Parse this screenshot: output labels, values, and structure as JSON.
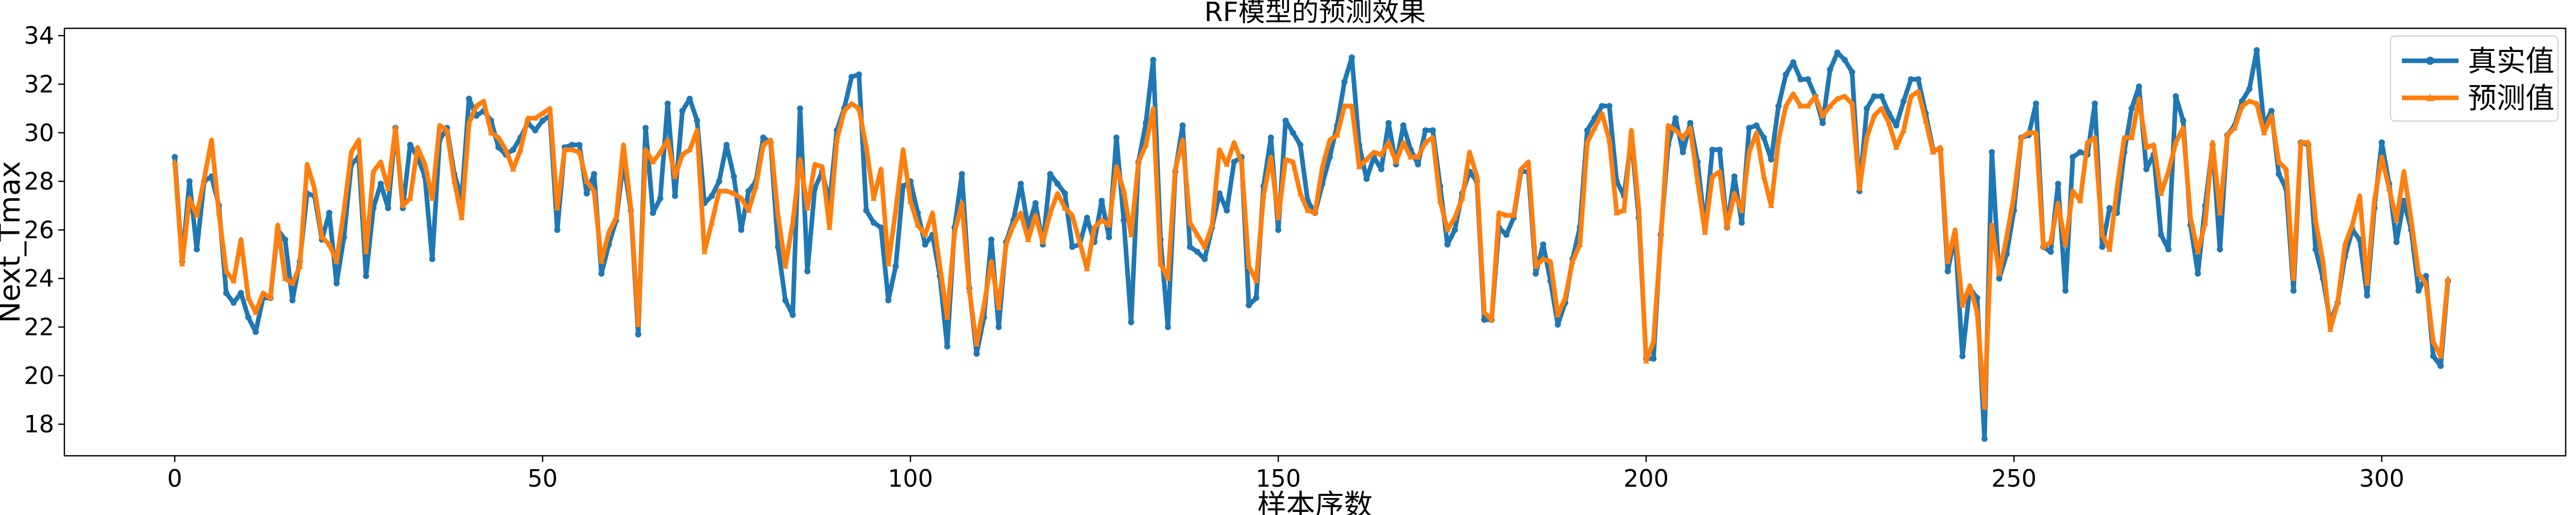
{
  "chart_data": {
    "type": "line",
    "title": "RF模型的预测效果",
    "xlabel": "样本序数",
    "ylabel": "Next_Tmax",
    "xlim": [
      -15,
      325
    ],
    "ylim": [
      16.7,
      34.3
    ],
    "xticks": [
      0,
      50,
      100,
      150,
      200,
      250,
      300
    ],
    "yticks": [
      18,
      20,
      22,
      24,
      26,
      28,
      30,
      32,
      34
    ],
    "grid": false,
    "legend": "top-right",
    "series": [
      {
        "name": "真实值",
        "color": "#1f77b4",
        "marker": "circle",
        "values": [
          29.0,
          24.7,
          28.0,
          25.2,
          28.0,
          28.2,
          27.0,
          23.4,
          23.0,
          23.4,
          22.4,
          21.8,
          23.2,
          23.2,
          26.0,
          25.6,
          23.1,
          24.7,
          27.5,
          27.4,
          25.6,
          26.7,
          23.8,
          25.7,
          28.7,
          29.0,
          24.1,
          26.9,
          27.9,
          26.9,
          30.2,
          26.9,
          29.5,
          29.0,
          28.2,
          24.8,
          29.7,
          30.2,
          28.3,
          27.3,
          31.4,
          30.7,
          30.9,
          30.5,
          29.4,
          29.1,
          29.3,
          29.8,
          30.4,
          30.1,
          30.5,
          30.7,
          26.0,
          29.4,
          29.5,
          29.5,
          27.5,
          28.3,
          24.2,
          25.4,
          26.4,
          28.8,
          26.8,
          21.7,
          30.2,
          26.7,
          27.3,
          31.2,
          27.4,
          30.9,
          31.4,
          30.5,
          27.1,
          27.4,
          28.0,
          29.5,
          28.2,
          26.0,
          27.6,
          28.0,
          29.8,
          29.6,
          25.3,
          23.1,
          22.5,
          31.0,
          24.3,
          27.7,
          28.4,
          27.1,
          30.1,
          31.0,
          32.3,
          32.4,
          26.8,
          26.3,
          26.1,
          23.1,
          24.5,
          27.8,
          28.0,
          26.7,
          25.4,
          25.8,
          24.1,
          21.2,
          26.1,
          28.3,
          23.6,
          20.9,
          22.4,
          25.6,
          22.0,
          25.5,
          26.4,
          27.9,
          26.1,
          27.1,
          25.4,
          28.3,
          27.9,
          27.5,
          25.3,
          25.4,
          26.5,
          25.5,
          27.2,
          25.7,
          29.8,
          26.4,
          22.2,
          28.8,
          30.4,
          33.0,
          25.6,
          22.0,
          28.4,
          30.3,
          25.3,
          25.1,
          24.8,
          26.1,
          27.5,
          26.8,
          28.8,
          29.0,
          22.9,
          23.2,
          27.8,
          29.8,
          26.0,
          30.5,
          30.0,
          29.5,
          27.2,
          26.7,
          27.9,
          29.0,
          30.3,
          32.1,
          33.1,
          29.5,
          28.1,
          29.0,
          28.5,
          30.4,
          28.7,
          30.3,
          29.3,
          28.7,
          30.1,
          30.1,
          27.8,
          25.4,
          26.0,
          27.5,
          28.4,
          28.0,
          22.3,
          22.3,
          26.1,
          25.8,
          26.5,
          28.4,
          28.4,
          24.2,
          25.4,
          23.9,
          22.1,
          23.0,
          24.8,
          26.1,
          30.1,
          30.6,
          31.1,
          31.1,
          28.0,
          27.4,
          29.8,
          26.5,
          20.7,
          20.7,
          25.8,
          29.5,
          30.6,
          29.2,
          30.4,
          28.8,
          26.1,
          29.3,
          29.3,
          26.1,
          28.2,
          26.3,
          30.2,
          30.3,
          29.8,
          28.9,
          31.1,
          32.4,
          32.9,
          32.2,
          32.2,
          31.5,
          30.4,
          32.6,
          33.3,
          33.0,
          32.5,
          27.6,
          31.0,
          31.5,
          31.5,
          30.8,
          30.3,
          31.3,
          32.2,
          32.2,
          30.8,
          29.3,
          29.3,
          24.3,
          25.8,
          20.8,
          23.6,
          23.2,
          17.4,
          29.2,
          24.0,
          25.0,
          26.8,
          29.8,
          29.9,
          31.2,
          25.3,
          25.1,
          27.9,
          23.5,
          29.0,
          29.2,
          29.1,
          31.2,
          25.3,
          26.9,
          26.7,
          29.2,
          31.0,
          31.9,
          28.5,
          29.1,
          25.8,
          25.2,
          31.5,
          30.5,
          26.2,
          24.2,
          27.0,
          29.5,
          25.2,
          29.9,
          30.3,
          31.3,
          31.8,
          33.4,
          30.3,
          30.9,
          28.3,
          27.7,
          23.5,
          29.6,
          29.5,
          25.2,
          24.0,
          22.2,
          23.0,
          24.9,
          26.0,
          25.6,
          23.3,
          26.9,
          29.6,
          27.9,
          25.5,
          27.2,
          26.0,
          23.5,
          24.1,
          20.8,
          20.4,
          23.9
        ]
      },
      {
        "name": "预测值",
        "color": "#ff7f0e",
        "marker": "triangle",
        "values": [
          28.8,
          24.6,
          27.3,
          26.6,
          28.1,
          29.7,
          26.7,
          24.3,
          23.9,
          25.6,
          23.2,
          22.6,
          23.4,
          23.2,
          26.2,
          24.0,
          23.8,
          24.5,
          28.7,
          27.7,
          25.7,
          25.4,
          24.7,
          26.8,
          29.2,
          29.7,
          25.1,
          28.4,
          28.8,
          27.7,
          30.2,
          27.0,
          27.3,
          29.4,
          28.7,
          27.3,
          30.3,
          30.1,
          28.0,
          26.5,
          30.4,
          31.1,
          31.3,
          30.0,
          29.8,
          29.3,
          28.5,
          29.3,
          30.6,
          30.6,
          30.8,
          31.0,
          26.9,
          29.3,
          29.3,
          29.2,
          28.0,
          27.6,
          24.7,
          25.9,
          26.5,
          29.5,
          26.9,
          22.1,
          29.3,
          28.8,
          29.2,
          29.7,
          28.2,
          29.1,
          29.3,
          30.1,
          25.1,
          26.3,
          27.6,
          27.6,
          27.5,
          27.3,
          26.8,
          27.8,
          29.5,
          29.7,
          26.6,
          24.5,
          26.3,
          28.9,
          26.9,
          28.7,
          28.6,
          26.1,
          29.7,
          30.9,
          31.2,
          31.0,
          29.4,
          27.3,
          28.5,
          24.6,
          26.8,
          29.3,
          27.2,
          26.2,
          25.8,
          26.7,
          24.5,
          22.4,
          25.9,
          27.1,
          23.5,
          21.3,
          22.9,
          24.7,
          22.8,
          25.4,
          26.2,
          26.7,
          25.6,
          26.6,
          25.5,
          26.7,
          27.5,
          26.9,
          26.6,
          25.5,
          24.4,
          26.1,
          26.4,
          26.2,
          28.6,
          27.6,
          25.8,
          28.8,
          29.5,
          31.0,
          24.6,
          24.0,
          28.5,
          29.7,
          26.3,
          25.8,
          25.3,
          26.2,
          29.3,
          28.7,
          29.6,
          28.8,
          24.5,
          23.9,
          27.4,
          29.0,
          26.5,
          28.9,
          28.8,
          27.5,
          26.8,
          26.7,
          28.6,
          29.7,
          29.9,
          31.1,
          31.1,
          28.6,
          28.9,
          29.2,
          29.1,
          29.6,
          28.8,
          29.6,
          29.0,
          29.0,
          29.6,
          29.8,
          27.2,
          26.0,
          26.5,
          27.3,
          29.2,
          28.2,
          22.6,
          22.3,
          26.7,
          26.6,
          26.6,
          28.5,
          28.8,
          24.5,
          24.8,
          24.7,
          22.5,
          23.2,
          24.7,
          25.4,
          29.6,
          30.2,
          30.8,
          29.7,
          26.7,
          26.8,
          30.1,
          26.9,
          20.6,
          21.4,
          25.6,
          30.3,
          30.1,
          29.8,
          30.2,
          28.0,
          25.9,
          28.2,
          28.4,
          26.1,
          27.5,
          26.8,
          29.2,
          30.0,
          28.2,
          27.0,
          29.7,
          31.1,
          31.6,
          31.1,
          31.1,
          31.5,
          30.7,
          31.1,
          31.4,
          31.5,
          31.2,
          27.7,
          29.8,
          30.7,
          31.0,
          30.4,
          29.4,
          30.1,
          31.5,
          31.7,
          30.5,
          29.2,
          29.4,
          24.7,
          26.0,
          22.9,
          23.7,
          22.6,
          18.7,
          26.2,
          24.2,
          25.7,
          27.4,
          29.8,
          30.0,
          30.0,
          25.3,
          25.5,
          27.1,
          25.4,
          27.6,
          27.2,
          29.6,
          29.8,
          25.8,
          25.2,
          27.7,
          29.8,
          29.8,
          31.4,
          29.4,
          29.5,
          27.5,
          28.4,
          29.6,
          30.2,
          26.5,
          25.1,
          26.3,
          29.6,
          26.7,
          29.9,
          30.2,
          31.1,
          31.3,
          31.2,
          30.0,
          30.7,
          28.8,
          28.5,
          24.0,
          29.6,
          29.6,
          26.4,
          24.7,
          21.9,
          23.0,
          25.4,
          26.2,
          27.4,
          23.8,
          27.2,
          29.0,
          27.7,
          26.4,
          28.4,
          26.4,
          24.2,
          23.8,
          21.4,
          20.8,
          24.0
        ]
      }
    ]
  }
}
